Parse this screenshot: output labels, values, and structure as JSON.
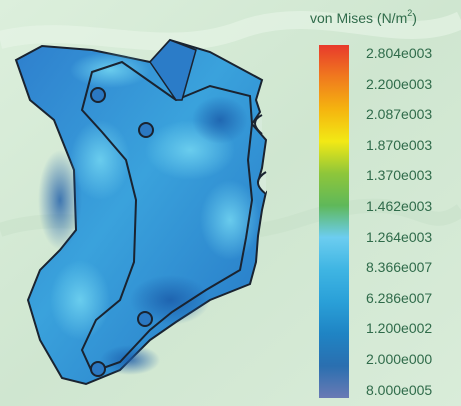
{
  "legend": {
    "title_prefix": "von Mises (N/m",
    "title_exponent": "2",
    "title_suffix": ")",
    "labels": [
      "2.804e003",
      "2.200e003",
      "2.087e003",
      "1.870e003",
      "1.370e003",
      "1.462e003",
      "1.264e003",
      "8.366e007",
      "6.286e007",
      "1.200e002",
      "2.000e000",
      "8.000e005"
    ],
    "colors": [
      "#e83a2c",
      "#f07a1e",
      "#f5b40f",
      "#f2e915",
      "#8ec63a",
      "#5fb85a",
      "#6ccdf0",
      "#3fb5e3",
      "#2aa0d8",
      "#1f84c4",
      "#2a6fb0",
      "#6a7ab4"
    ]
  },
  "model": {
    "colors": {
      "base": "#2f83cf",
      "dark": "#1c5fae",
      "light": "#5cc3ea",
      "outline": "#1a2330"
    }
  }
}
